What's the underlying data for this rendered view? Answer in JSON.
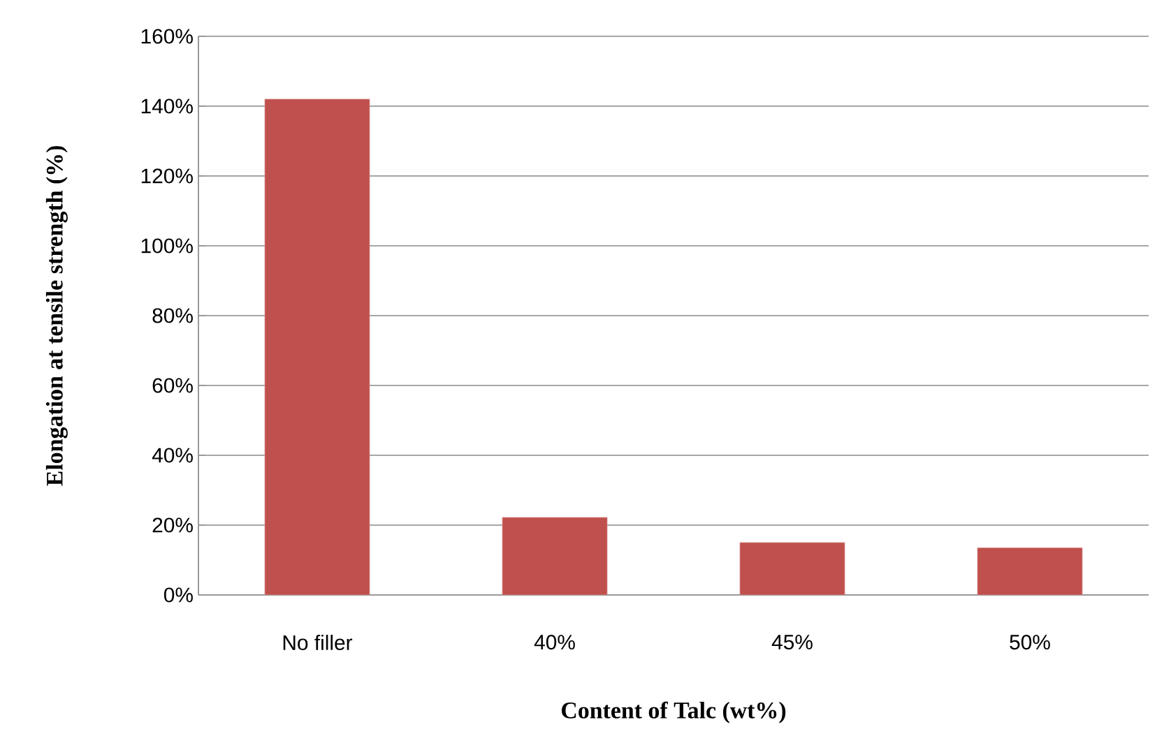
{
  "chart_data": {
    "type": "bar",
    "xlabel": "Content of Talc (wt%)",
    "ylabel": "Elongation at tensile strength (%)",
    "categories": [
      "No filler",
      "40%",
      "45%",
      "50%"
    ],
    "values": [
      142,
      22.2,
      15,
      13.5
    ],
    "color": "#c0504d",
    "ylim": [
      0,
      160
    ],
    "yticks": [
      {
        "value": 0,
        "label": "0%"
      },
      {
        "value": 20,
        "label": "20%"
      },
      {
        "value": 40,
        "label": "40%"
      },
      {
        "value": 60,
        "label": "60%"
      },
      {
        "value": 80,
        "label": "80%"
      },
      {
        "value": 100,
        "label": "100%"
      },
      {
        "value": 120,
        "label": "120%"
      },
      {
        "value": 140,
        "label": "140%"
      },
      {
        "value": 160,
        "label": "160%"
      }
    ],
    "grid": "y"
  }
}
